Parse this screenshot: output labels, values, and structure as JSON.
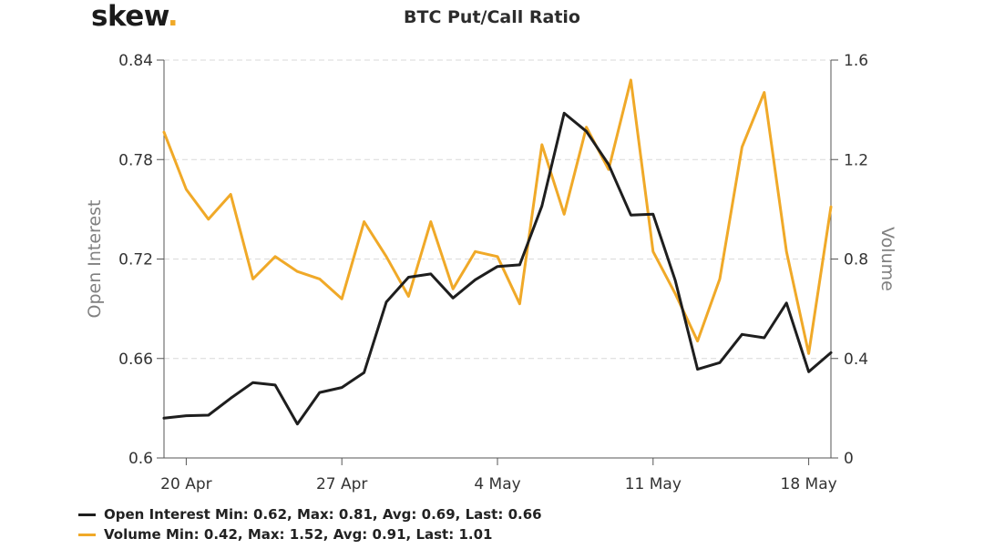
{
  "brand": {
    "name": "skew",
    "dot": "."
  },
  "chart_data": {
    "type": "line",
    "title": "BTC Put/Call Ratio",
    "x_ticks": [
      "20 Apr",
      "27 Apr",
      "4 May",
      "11 May",
      "18 May"
    ],
    "x": [
      "19 Apr",
      "20 Apr",
      "21 Apr",
      "22 Apr",
      "23 Apr",
      "24 Apr",
      "25 Apr",
      "26 Apr",
      "27 Apr",
      "28 Apr",
      "29 Apr",
      "30 Apr",
      "1 May",
      "2 May",
      "3 May",
      "4 May",
      "5 May",
      "6 May",
      "7 May",
      "8 May",
      "9 May",
      "10 May",
      "11 May",
      "12 May",
      "13 May",
      "14 May",
      "15 May",
      "16 May",
      "17 May",
      "18 May",
      "19 May"
    ],
    "y_left": {
      "label": "Open Interest",
      "ticks": [
        "0.84",
        "0.78",
        "0.72",
        "0.66",
        "0.6"
      ],
      "range": [
        0.6,
        0.84
      ]
    },
    "y_right": {
      "label": "Volume",
      "ticks": [
        "1.6",
        "1.2",
        "0.8",
        "0.4",
        "0"
      ],
      "range": [
        0,
        1.6
      ]
    },
    "grid": "horizontal-dashed",
    "series": [
      {
        "name": "Open Interest",
        "axis": "left",
        "color": "#1e1e1e",
        "values": [
          0.624,
          0.6255,
          0.6258,
          0.636,
          0.6455,
          0.644,
          0.6205,
          0.6395,
          0.6425,
          0.6515,
          0.694,
          0.709,
          0.711,
          0.6965,
          0.7075,
          0.7155,
          0.7165,
          0.752,
          0.808,
          0.797,
          0.777,
          0.7465,
          0.747,
          0.707,
          0.6535,
          0.6575,
          0.6745,
          0.6725,
          0.6935,
          0.652,
          0.6635
        ]
      },
      {
        "name": "Volume",
        "axis": "right",
        "color": "#f0a928",
        "values": [
          1.31,
          1.08,
          0.96,
          1.06,
          0.72,
          0.81,
          0.75,
          0.72,
          0.64,
          0.95,
          0.81,
          0.65,
          0.95,
          0.68,
          0.83,
          0.81,
          0.62,
          1.26,
          0.98,
          1.33,
          1.16,
          1.52,
          0.83,
          0.66,
          0.47,
          0.72,
          1.25,
          1.47,
          0.83,
          0.42,
          1.01
        ]
      }
    ]
  },
  "legend": [
    {
      "series": "Open Interest",
      "color": "#1e1e1e",
      "text": "Open Interest Min: 0.62, Max: 0.81, Avg: 0.69, Last: 0.66"
    },
    {
      "series": "Volume",
      "color": "#f0a928",
      "text": "Volume Min: 0.42, Max: 1.52, Avg: 0.91, Last: 1.01"
    }
  ]
}
